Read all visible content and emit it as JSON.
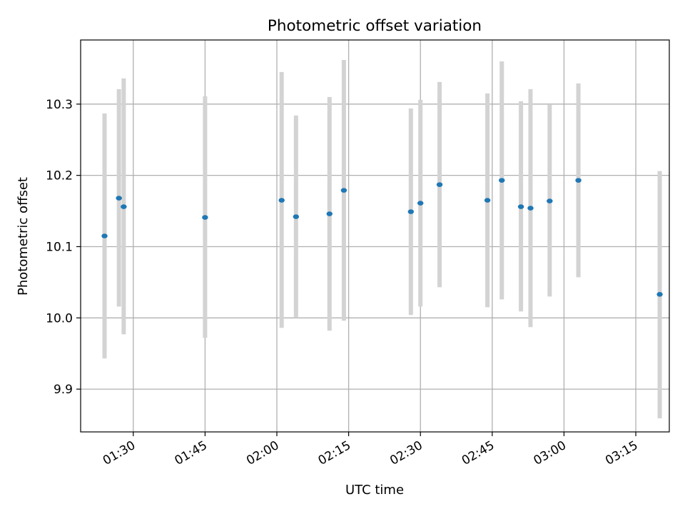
{
  "chart_data": {
    "type": "scatter",
    "title": "Photometric offset variation",
    "xlabel": "UTC time",
    "ylabel": "Photometric offset",
    "x_ticks": [
      "01:30",
      "01:45",
      "02:00",
      "02:15",
      "02:30",
      "02:45",
      "03:00",
      "03:15"
    ],
    "y_ticks": [
      "9.9",
      "10.0",
      "10.1",
      "10.2",
      "10.3"
    ],
    "xlim": [
      "01:19",
      "03:22"
    ],
    "ylim": [
      9.84,
      10.39
    ],
    "grid": true,
    "colors": {
      "points": "#1f77b4",
      "errorbars": "#d3d3d3",
      "grid": "#b0b0b0"
    },
    "points": [
      {
        "x": "01:24",
        "y": 10.115,
        "ylow": 9.943,
        "yhigh": 10.287
      },
      {
        "x": "01:27",
        "y": 10.168,
        "ylow": 10.016,
        "yhigh": 10.321
      },
      {
        "x": "01:28",
        "y": 10.156,
        "ylow": 9.977,
        "yhigh": 10.336
      },
      {
        "x": "01:45",
        "y": 10.141,
        "ylow": 9.972,
        "yhigh": 10.311
      },
      {
        "x": "02:01",
        "y": 10.165,
        "ylow": 9.986,
        "yhigh": 10.345
      },
      {
        "x": "02:04",
        "y": 10.142,
        "ylow": 10.0,
        "yhigh": 10.284
      },
      {
        "x": "02:11",
        "y": 10.146,
        "ylow": 9.982,
        "yhigh": 10.31
      },
      {
        "x": "02:14",
        "y": 10.179,
        "ylow": 9.996,
        "yhigh": 10.362
      },
      {
        "x": "02:28",
        "y": 10.149,
        "ylow": 10.004,
        "yhigh": 10.294
      },
      {
        "x": "02:30",
        "y": 10.161,
        "ylow": 10.016,
        "yhigh": 10.306
      },
      {
        "x": "02:34",
        "y": 10.187,
        "ylow": 10.043,
        "yhigh": 10.331
      },
      {
        "x": "02:44",
        "y": 10.165,
        "ylow": 10.015,
        "yhigh": 10.315
      },
      {
        "x": "02:47",
        "y": 10.193,
        "ylow": 10.026,
        "yhigh": 10.36
      },
      {
        "x": "02:51",
        "y": 10.156,
        "ylow": 10.009,
        "yhigh": 10.304
      },
      {
        "x": "02:53",
        "y": 10.154,
        "ylow": 9.987,
        "yhigh": 10.321
      },
      {
        "x": "02:57",
        "y": 10.164,
        "ylow": 10.03,
        "yhigh": 10.299
      },
      {
        "x": "03:03",
        "y": 10.193,
        "ylow": 10.057,
        "yhigh": 10.329
      },
      {
        "x": "03:20",
        "y": 10.033,
        "ylow": 9.859,
        "yhigh": 10.206
      }
    ]
  }
}
